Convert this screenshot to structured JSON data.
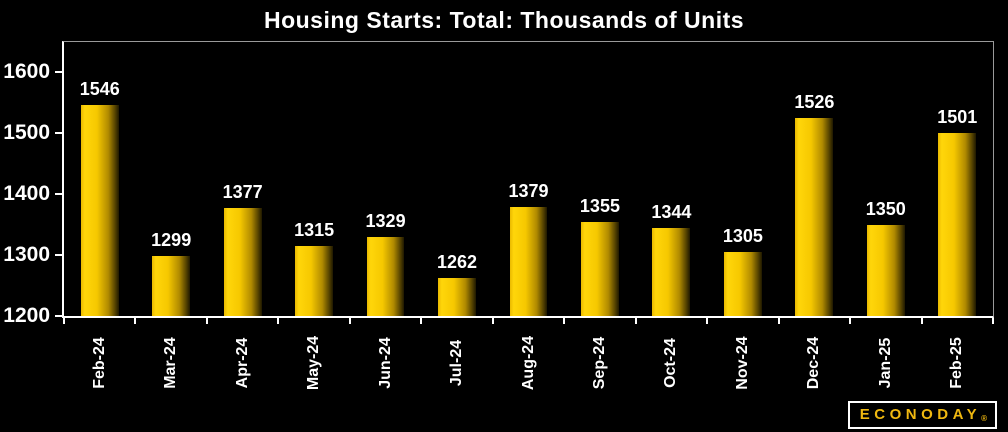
{
  "chart_data": {
    "type": "bar",
    "title": "Housing Starts: Total: Thousands of Units",
    "categories": [
      "Feb-24",
      "Mar-24",
      "Apr-24",
      "May-24",
      "Jun-24",
      "Jul-24",
      "Aug-24",
      "Sep-24",
      "Oct-24",
      "Nov-24",
      "Dec-24",
      "Jan-25",
      "Feb-25"
    ],
    "values": [
      1546,
      1299,
      1377,
      1315,
      1329,
      1262,
      1379,
      1355,
      1344,
      1305,
      1526,
      1350,
      1501
    ],
    "xlabel": "",
    "ylabel": "",
    "ylim": [
      1200,
      1650
    ],
    "yticks": [
      1200,
      1300,
      1400,
      1500,
      1600
    ],
    "grid": false,
    "legend_position": "none",
    "data_labels": true,
    "bar_width_fraction": 0.53
  },
  "colors": {
    "background": "#000000",
    "text": "#ffffff",
    "axis": "#ffffff",
    "plot_border": "#9a9a9a",
    "bar_gradient": [
      "#e9b900 0%",
      "#ffd60a 10%",
      "#f6c800 42%",
      "#b08a00 72%",
      "#4a3a00 92%",
      "#1f1800 100%"
    ],
    "logo_gold": "#f0b810"
  },
  "logo": {
    "text": "ECONODAY",
    "reg": "®"
  }
}
